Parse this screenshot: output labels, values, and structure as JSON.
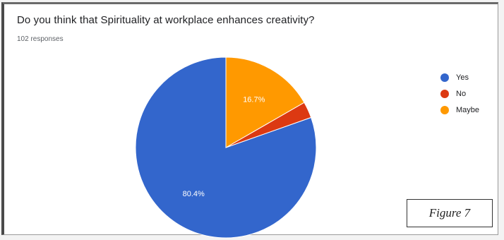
{
  "chart_data": {
    "type": "pie",
    "title": "Do you think that Spirituality at workplace enhances creativity?",
    "subtitle": "102 responses",
    "categories": [
      "Yes",
      "No",
      "Maybe"
    ],
    "values": [
      80.4,
      2.9,
      16.7
    ],
    "value_labels": [
      "80.4%",
      "",
      "16.7%"
    ],
    "colors": [
      "#3366cc",
      "#dc3912",
      "#ff9900"
    ],
    "start_angle_deg": 90,
    "direction": "counterclockwise",
    "legend_position": "right"
  },
  "figure_label": "Figure 7"
}
